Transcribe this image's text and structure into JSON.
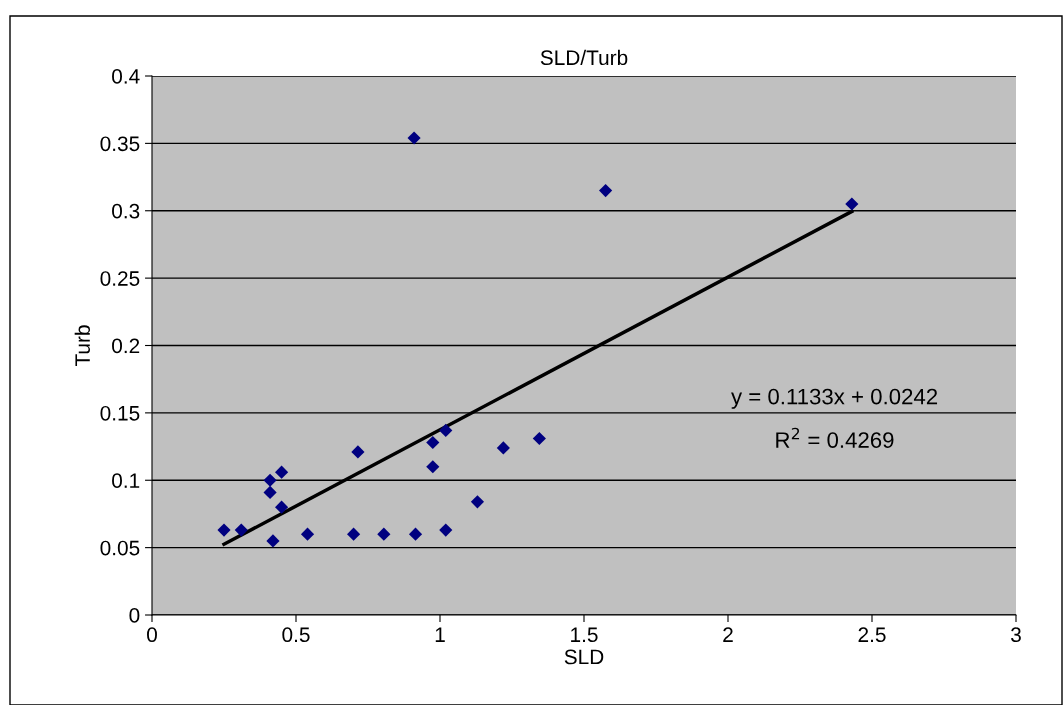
{
  "chart_data": {
    "type": "scatter",
    "title": "SLD/Turb",
    "xlabel": "SLD",
    "ylabel": "Turb",
    "annotations": [
      "y = 0.1133x + 0.0242",
      "R$^{2}$ = 0.4269"
    ],
    "xlim": [
      0,
      3
    ],
    "xticks": [
      0,
      0.5,
      1,
      1.5,
      2,
      2.5,
      3
    ],
    "ylim": [
      0,
      0.4
    ],
    "yticks": [
      0,
      0.05,
      0.1,
      0.15,
      0.2,
      0.25,
      0.3,
      0.35,
      0.4
    ],
    "grid": "y",
    "series": [
      {
        "marker": "diamond",
        "color": "#000080",
        "x": [
          0.25,
          0.31,
          0.41,
          0.41,
          0.45,
          0.45,
          0.42,
          0.54,
          0.715,
          0.7,
          0.805,
          0.915,
          0.975,
          0.975,
          1.02,
          1.02,
          1.13,
          1.22,
          1.345,
          0.91,
          1.575,
          2.43
        ],
        "values": [
          0.063,
          0.063,
          0.1,
          0.091,
          0.106,
          0.08,
          0.055,
          0.06,
          0.121,
          0.06,
          0.06,
          0.06,
          0.128,
          0.11,
          0.137,
          0.063,
          0.084,
          0.124,
          0.131,
          0.354,
          0.315,
          0.305
        ]
      },
      {
        "type": "line",
        "color": "#000000",
        "x": [
          0.25,
          2.43
        ],
        "values": [
          0.0525,
          0.2995
        ]
      }
    ]
  }
}
